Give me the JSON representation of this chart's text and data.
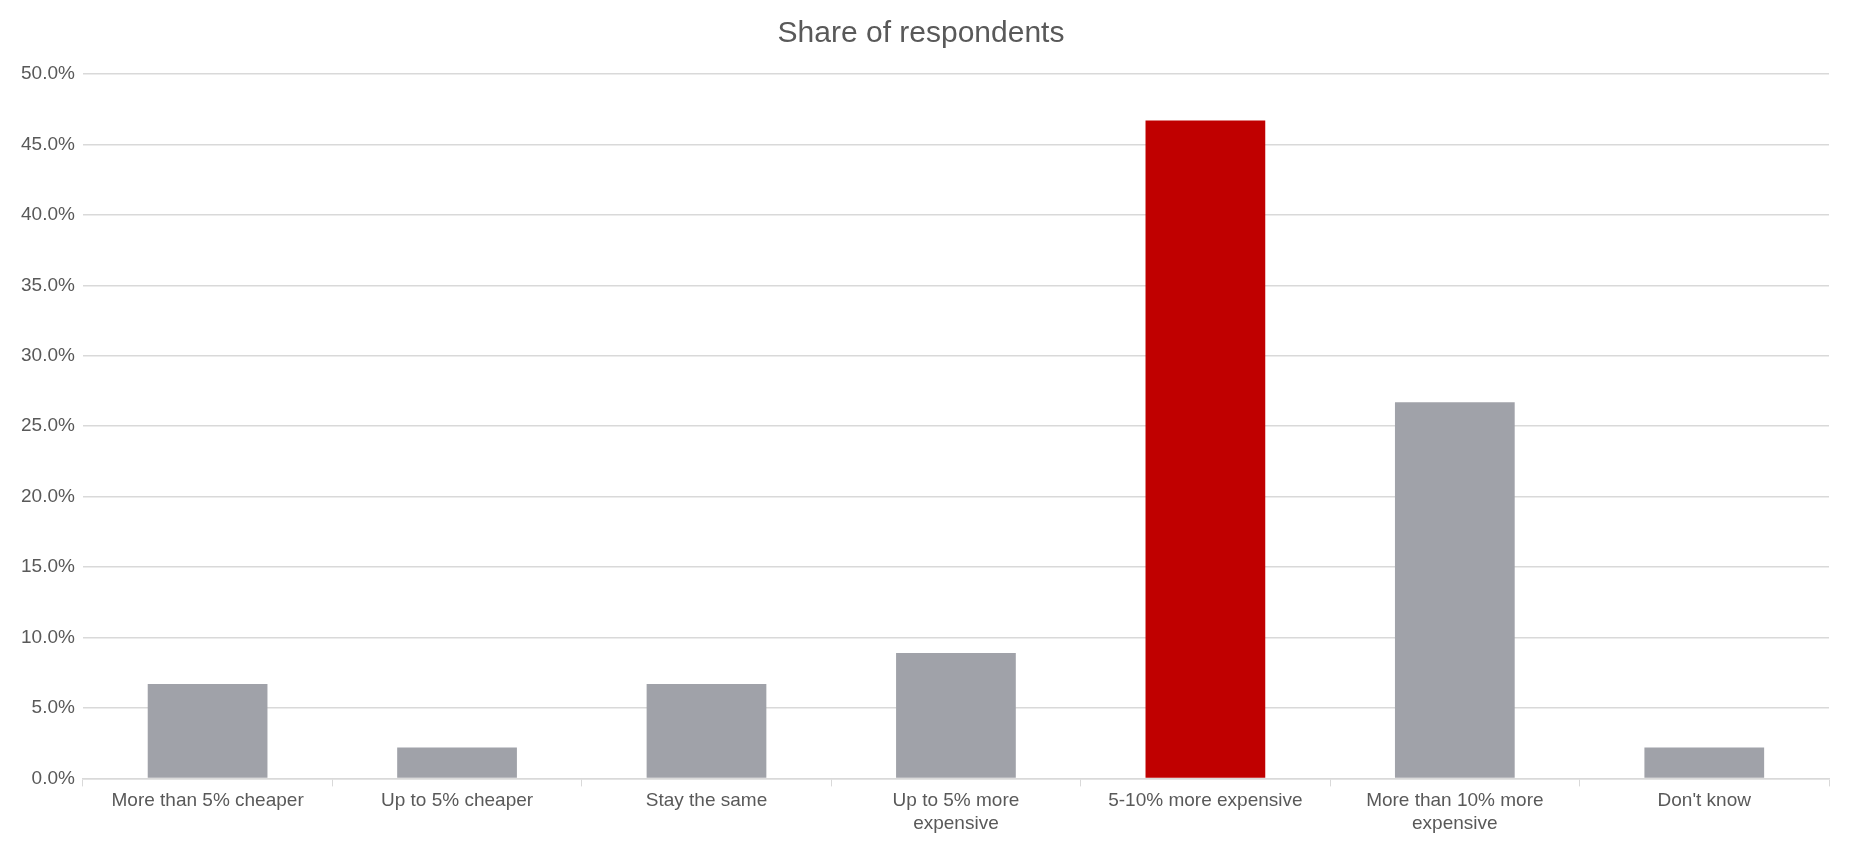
{
  "chart_data": {
    "type": "bar",
    "title": "Share of respondents",
    "categories": [
      "More than 5% cheaper",
      "Up to 5% cheaper",
      "Stay the same",
      "Up to 5% more expensive",
      "5-10% more expensive",
      "More than 10% more expensive",
      "Don't know"
    ],
    "values": [
      6.7,
      2.2,
      6.7,
      8.9,
      46.7,
      26.7,
      2.2
    ],
    "colors": [
      "#a0a2a9",
      "#a0a2a9",
      "#a0a2a9",
      "#a0a2a9",
      "#c00000",
      "#a0a2a9",
      "#a0a2a9"
    ],
    "ylim": [
      0,
      50
    ],
    "yticks": [
      {
        "value": 0,
        "label": "0.0%"
      },
      {
        "value": 5,
        "label": "5.0%"
      },
      {
        "value": 10,
        "label": "10.0%"
      },
      {
        "value": 15,
        "label": "15.0%"
      },
      {
        "value": 20,
        "label": "20.0%"
      },
      {
        "value": 25,
        "label": "25.0%"
      },
      {
        "value": 30,
        "label": "30.0%"
      },
      {
        "value": 35,
        "label": "35.0%"
      },
      {
        "value": 40,
        "label": "40.0%"
      },
      {
        "value": 45,
        "label": "45.0%"
      },
      {
        "value": 50,
        "label": "50.0%"
      }
    ],
    "grid": "y",
    "legend": false
  }
}
